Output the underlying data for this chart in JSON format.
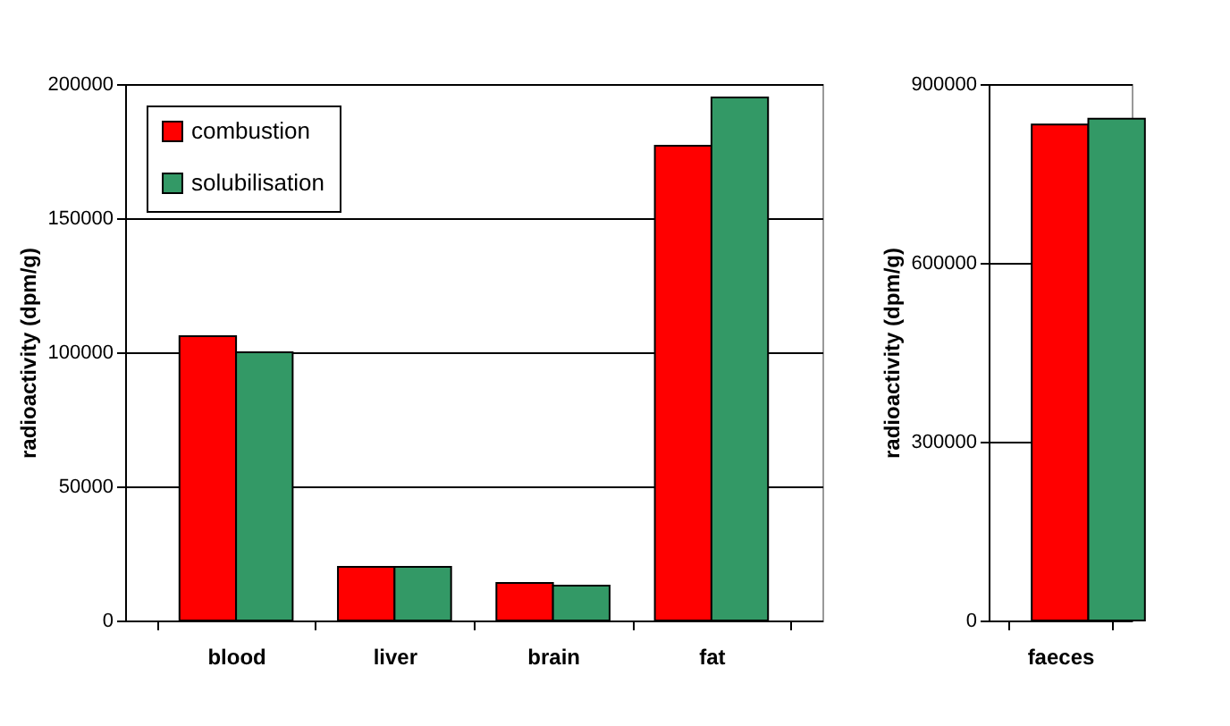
{
  "chart_data": [
    {
      "type": "bar",
      "ylabel": "radioactivity (dpm/g)",
      "categories": [
        "blood",
        "liver",
        "brain",
        "fat"
      ],
      "series": [
        {
          "name": "combustion",
          "color": "#ff0000",
          "values": [
            106000,
            20000,
            14000,
            177000
          ]
        },
        {
          "name": "solubilisation",
          "color": "#339966",
          "values": [
            100000,
            20000,
            13000,
            195000
          ]
        }
      ],
      "ylim": [
        0,
        200000
      ],
      "yticks": [
        0,
        50000,
        100000,
        150000,
        200000
      ],
      "grid": "y",
      "legend": "top left"
    },
    {
      "type": "bar",
      "ylabel": "radioactivity (dpm/g)",
      "categories": [
        "faeces"
      ],
      "series": [
        {
          "color": "#ff0000",
          "values": [
            832000
          ]
        },
        {
          "color": "#339966",
          "values": [
            842000
          ]
        }
      ],
      "ylim": [
        0,
        900000
      ],
      "yticks": [
        0,
        300000,
        600000,
        900000
      ],
      "grid": "y"
    }
  ]
}
